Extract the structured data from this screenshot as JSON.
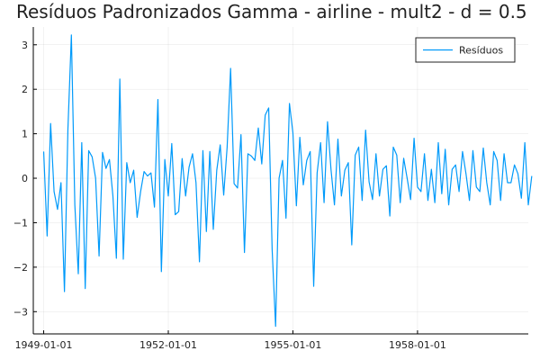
{
  "chart_data": {
    "type": "line",
    "title": "Resíduos Padronizados Gamma - airline - mult2 - d = 0.5",
    "xlabel": "",
    "ylabel": "",
    "x_start": "1949-01-01",
    "x_frequency": "monthly",
    "xlim": [
      "1948-10-01",
      "1960-09-01"
    ],
    "ylim": [
      -3.5,
      3.4
    ],
    "x_ticks": [
      "1949-01-01",
      "1952-01-01",
      "1955-01-01",
      "1958-01-01"
    ],
    "y_ticks": [
      -3,
      -2,
      -1,
      0,
      1,
      2,
      3
    ],
    "grid": true,
    "legend_position": "top-right",
    "series": [
      {
        "name": "Resíduos",
        "color": "#009AFA",
        "values": [
          0.6,
          -1.3,
          1.23,
          -0.3,
          -0.7,
          -0.1,
          -2.55,
          1.1,
          3.22,
          -0.6,
          -2.15,
          0.8,
          -2.48,
          0.62,
          0.48,
          0.0,
          -1.75,
          0.58,
          0.22,
          0.42,
          -0.4,
          -1.8,
          2.23,
          -1.82,
          0.35,
          -0.1,
          0.18,
          -0.88,
          -0.3,
          0.15,
          0.05,
          0.12,
          -0.65,
          1.77,
          -2.1,
          0.42,
          -0.4,
          0.78,
          -0.82,
          -0.75,
          0.44,
          -0.4,
          0.25,
          0.55,
          -0.1,
          -1.88,
          0.62,
          -1.2,
          0.6,
          -1.15,
          0.18,
          0.75,
          -0.38,
          0.7,
          2.47,
          -0.12,
          -0.22,
          0.98,
          -1.67,
          0.55,
          0.5,
          0.4,
          1.13,
          0.32,
          1.42,
          1.58,
          -1.6,
          -3.33,
          0.0,
          0.4,
          -0.9,
          1.68,
          1.02,
          -0.62,
          0.92,
          -0.15,
          0.4,
          0.6,
          -2.43,
          0.12,
          0.8,
          -0.55,
          1.27,
          0.2,
          -0.6,
          0.88,
          -0.4,
          0.18,
          0.35,
          -1.5,
          0.52,
          0.7,
          -0.5,
          1.08,
          -0.08,
          -0.48,
          0.55,
          -0.4,
          0.2,
          0.28,
          -0.85,
          0.7,
          0.52,
          -0.55,
          0.45,
          0.0,
          -0.48,
          0.9,
          -0.2,
          -0.3,
          0.55,
          -0.5,
          0.2,
          -0.55,
          0.8,
          -0.35,
          0.65,
          -0.6,
          0.2,
          0.3,
          -0.3,
          0.6,
          0.1,
          -0.5,
          0.62,
          -0.2,
          -0.3,
          0.68,
          -0.1,
          -0.6,
          0.6,
          0.4,
          -0.5,
          0.55,
          -0.1,
          -0.1,
          0.3,
          0.1,
          -0.45,
          0.8,
          -0.6,
          0.05
        ]
      }
    ]
  }
}
